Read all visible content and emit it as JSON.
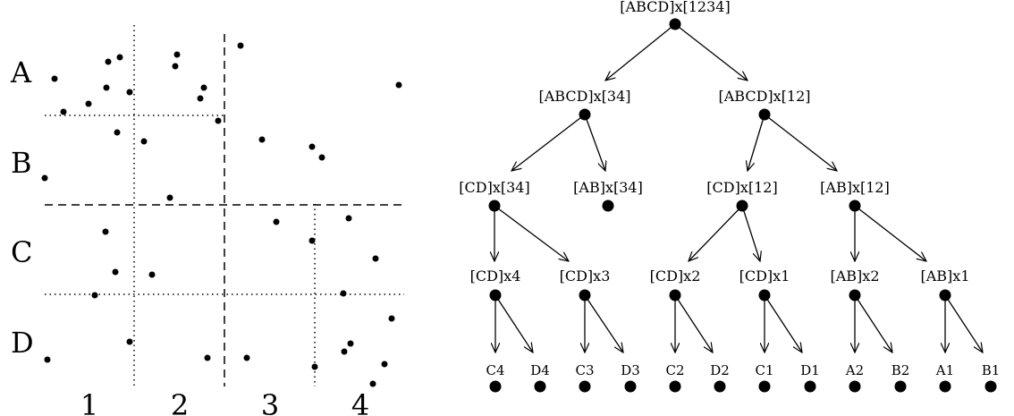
{
  "grid": {
    "row_labels": [
      "A",
      "B",
      "C",
      "D"
    ],
    "col_labels": [
      "1",
      "2",
      "3",
      "4"
    ]
  },
  "tree": {
    "root": "[ABCD]x[1234]",
    "level1": [
      "[ABCD]x[34]",
      "[ABCD]x[12]"
    ],
    "level2": [
      "[CD]x[34]",
      "[AB]x[34]",
      "[CD]x[12]",
      "[AB]x[12]"
    ],
    "level3": [
      "[CD]x4",
      "[CD]x3",
      "[CD]x2",
      "[CD]x1",
      "[AB]x2",
      "[AB]x1"
    ],
    "leaves": [
      "C4",
      "D4",
      "C3",
      "D3",
      "C2",
      "D2",
      "C1",
      "D1",
      "A2",
      "B2",
      "A1",
      "B1"
    ]
  },
  "colors": {
    "ink": "#000000",
    "background": "#ffffff"
  }
}
